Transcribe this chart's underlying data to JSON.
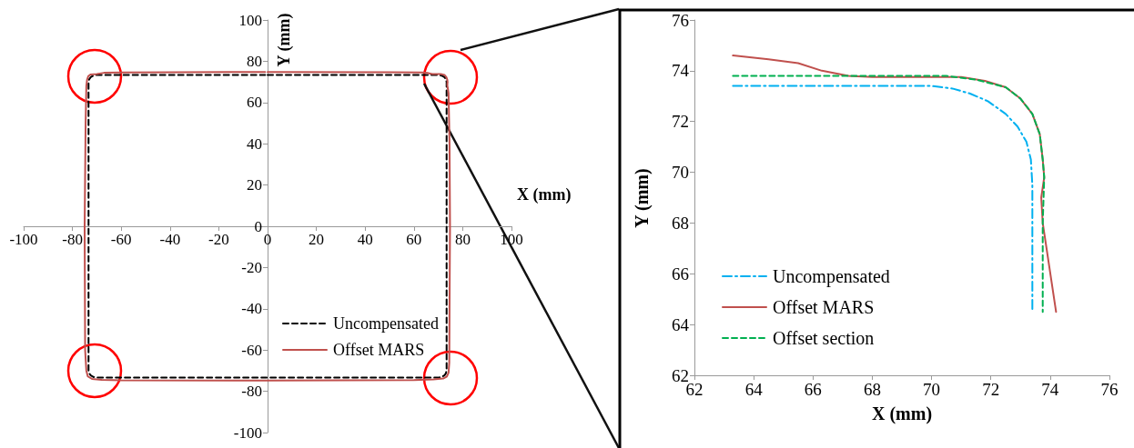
{
  "chart_data": [
    {
      "type": "line",
      "xlabel": "X (mm)",
      "ylabel": "Y (mm)",
      "xlim": [
        -100,
        100
      ],
      "ylim": [
        -100,
        100
      ],
      "xticks": [
        -100,
        -80,
        -60,
        -40,
        -20,
        0,
        20,
        40,
        60,
        80,
        100
      ],
      "yticks": [
        -100,
        -80,
        -60,
        -40,
        -20,
        0,
        20,
        40,
        60,
        80,
        100
      ],
      "legend": "bottom right",
      "marker": "none",
      "series": [
        {
          "name": "Uncompensated",
          "color": "#000000",
          "line_style": "dashed",
          "x": [
            0,
            70,
            71.5,
            72.5,
            73.1,
            73.4,
            73.4,
            73.1,
            72.5,
            71.5,
            70,
            -70,
            -71.5,
            -72.5,
            -73.1,
            -73.4,
            -73.4,
            -73.1,
            -72.5,
            -71.5,
            -70,
            -1
          ],
          "values": [
            73.4,
            73.4,
            73,
            72.3,
            71.3,
            70,
            -70,
            -71.3,
            -72.3,
            -73,
            -73.4,
            -73.4,
            -73,
            -72.3,
            -71.3,
            -70,
            70,
            71.3,
            72.3,
            73,
            73.4,
            73.4
          ]
        },
        {
          "name": "Offset MARS",
          "color": "#c0504d",
          "line_style": "solid",
          "x": [
            0,
            50,
            63.3,
            65.5,
            67.5,
            71,
            72.5,
            73.3,
            73.7,
            73.8,
            73.7,
            73.75,
            74.2,
            74.6,
            74.8,
            74.6,
            74.5,
            74.2,
            73.5,
            72,
            68,
            60,
            0,
            -60,
            -68,
            -72,
            -73.7,
            -74.3,
            -74.8,
            -75,
            -74.6,
            -74.3,
            -74,
            -73.5,
            -72.5,
            -70,
            -67,
            -60,
            -1
          ],
          "values": [
            74.8,
            74.7,
            74.6,
            74.3,
            73.8,
            73.8,
            73.4,
            72.3,
            71,
            69.8,
            69,
            68,
            64.5,
            40,
            0,
            -40,
            -66,
            -71,
            -72.8,
            -73.8,
            -74.2,
            -74.6,
            -74.8,
            -74.7,
            -74.4,
            -74,
            -72.8,
            -70,
            -60,
            0,
            50,
            68,
            71,
            72.8,
            73.6,
            73.8,
            74.4,
            74.6,
            74.8
          ]
        }
      ]
    },
    {
      "type": "line",
      "xlabel": "X (mm)",
      "ylabel": "Y (mm)",
      "xlim": [
        62,
        76
      ],
      "ylim": [
        62,
        76
      ],
      "xticks": [
        62,
        64,
        66,
        68,
        70,
        72,
        74,
        76
      ],
      "yticks": [
        62,
        64,
        66,
        68,
        70,
        72,
        74,
        76
      ],
      "legend": "bottom left",
      "marker": "none",
      "series": [
        {
          "name": "Uncompensated",
          "color": "#00b0f0",
          "line_style": "dashdot",
          "x": [
            63.3,
            70,
            70.7,
            71.3,
            71.9,
            72.5,
            72.9,
            73.2,
            73.35,
            73.4,
            73.4
          ],
          "values": [
            73.4,
            73.4,
            73.3,
            73.1,
            72.8,
            72.3,
            71.8,
            71.2,
            70.5,
            69.5,
            64.5
          ]
        },
        {
          "name": "Offset MARS",
          "color": "#c0504d",
          "line_style": "solid",
          "x": [
            63.3,
            64.5,
            65.5,
            66.3,
            67.2,
            68,
            71,
            71.8,
            72.5,
            73,
            73.4,
            73.65,
            73.75,
            73.8,
            73.7,
            73.75,
            74.2
          ],
          "values": [
            74.6,
            74.45,
            74.3,
            74,
            73.8,
            73.75,
            73.75,
            73.6,
            73.35,
            72.9,
            72.3,
            71.5,
            70.5,
            69.8,
            69,
            68,
            64.5
          ]
        },
        {
          "name": "Offset section",
          "color": "#00b050",
          "line_style": "dashed",
          "x": [
            63.3,
            70.5,
            71.5,
            72.5,
            73,
            73.4,
            73.65,
            73.75,
            73.8,
            73.75,
            73.75
          ],
          "values": [
            73.8,
            73.8,
            73.65,
            73.35,
            72.9,
            72.3,
            71.5,
            70.5,
            69.8,
            68,
            64.5
          ]
        }
      ]
    }
  ]
}
